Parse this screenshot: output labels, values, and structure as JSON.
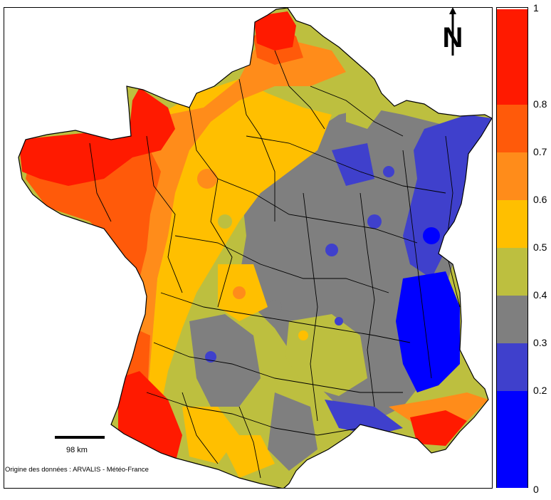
{
  "legend": {
    "ticks": [
      {
        "label": "1",
        "value": 1
      },
      {
        "label": "0.8",
        "value": 0.8
      },
      {
        "label": "0.7",
        "value": 0.7
      },
      {
        "label": "0.6",
        "value": 0.6
      },
      {
        "label": "0.5",
        "value": 0.5
      },
      {
        "label": "0.4",
        "value": 0.4
      },
      {
        "label": "0.3",
        "value": 0.3
      },
      {
        "label": "0.2",
        "value": 0.2
      },
      {
        "label": "0",
        "value": 0
      }
    ],
    "classes": [
      {
        "from": 0.8,
        "to": 1.0,
        "color": "#ff1a00"
      },
      {
        "from": 0.7,
        "to": 0.8,
        "color": "#ff5a0a"
      },
      {
        "from": 0.6,
        "to": 0.7,
        "color": "#ff8c1a"
      },
      {
        "from": 0.5,
        "to": 0.6,
        "color": "#ffbf00"
      },
      {
        "from": 0.4,
        "to": 0.5,
        "color": "#bdbf3f"
      },
      {
        "from": 0.3,
        "to": 0.4,
        "color": "#7f7f7f"
      },
      {
        "from": 0.2,
        "to": 0.3,
        "color": "#3f40cc"
      },
      {
        "from": 0.0,
        "to": 0.2,
        "color": "#0000ff"
      }
    ]
  },
  "scale": {
    "label": "98 km"
  },
  "north": {
    "label": "N"
  },
  "source": {
    "text": "Origine des données : ARVALIS - Météo-France"
  }
}
